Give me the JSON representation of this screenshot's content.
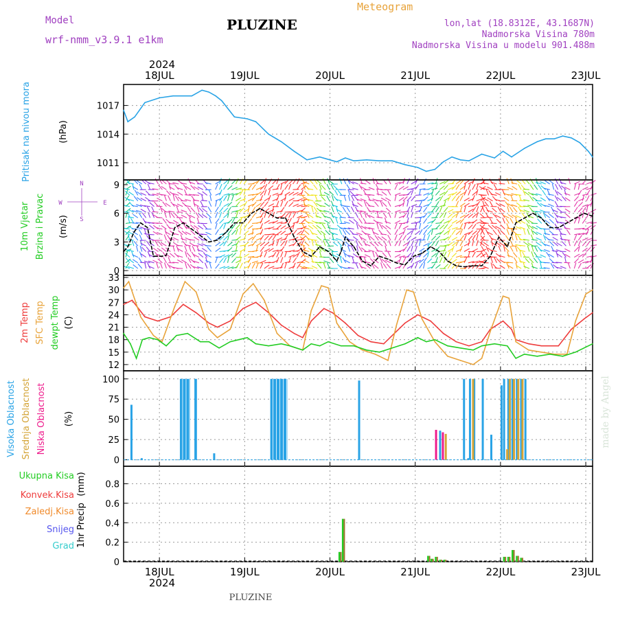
{
  "header": {
    "model_label": "Model",
    "model_name": "wrf-nmm_v3.9.1 e1km",
    "station": "PLUZINE",
    "meteogram_label": "Meteogram",
    "coords": "lon,lat (18.8312E, 43.1687N)",
    "altitude": "Nadmorska Visina 780m",
    "model_altitude": "Nadmorska Visina u modelu 901.488m",
    "watermark": "made by Angel",
    "footer_station": "PLUZINE"
  },
  "colors": {
    "pressure": "#29a3e6",
    "temp2m": "#ee3b3b",
    "sfc_temp": "#e8a33a",
    "dewpt": "#22cc22",
    "high_cloud": "#29a3e6",
    "mid_cloud": "#d4a437",
    "low_cloud": "#ee1c8c",
    "total_precip": "#22cc22",
    "conv_precip": "#ee3b3b",
    "frozen_precip": "#f08a2a",
    "snow": "#5555ee",
    "graupel": "#33cccc",
    "label_purple": "#a040c0"
  },
  "time_axis": {
    "year_label": "2024",
    "days": [
      "18JUL",
      "19JUL",
      "20JUL",
      "21JUL",
      "22JUL",
      "23JUL"
    ]
  },
  "chart_data": [
    {
      "type": "line",
      "ylabel_a": "Pritisak na nivou mora",
      "ylabel_b": "(hPa)",
      "ylim": [
        1009.2,
        1019.2
      ],
      "yticks": [
        1011,
        1014,
        1017
      ],
      "grid": true,
      "series": [
        {
          "name": "Pritisak na nivou mora",
          "x": [
            0,
            0.05,
            0.13,
            0.25,
            0.42,
            0.58,
            0.8,
            0.92,
            1.0,
            1.08,
            1.15,
            1.3,
            1.45,
            1.55,
            1.7,
            1.85,
            2.0,
            2.15,
            2.3,
            2.42,
            2.5,
            2.6,
            2.7,
            2.85,
            3.0,
            3.15,
            3.3,
            3.45,
            3.55,
            3.65,
            3.75,
            3.85,
            3.95,
            4.05,
            4.2,
            4.35,
            4.45,
            4.55,
            4.7,
            4.85,
            4.95,
            5.05,
            5.15,
            5.25,
            5.35,
            5.45,
            5.5
          ],
          "y": [
            1016.5,
            1015.3,
            1015.8,
            1017.3,
            1017.8,
            1018.0,
            1018.0,
            1018.6,
            1018.4,
            1018.0,
            1017.5,
            1015.8,
            1015.6,
            1015.3,
            1014.0,
            1013.2,
            1012.2,
            1011.3,
            1011.6,
            1011.3,
            1011.1,
            1011.5,
            1011.2,
            1011.3,
            1011.2,
            1011.2,
            1010.8,
            1010.5,
            1010.1,
            1010.3,
            1011.1,
            1011.6,
            1011.3,
            1011.2,
            1011.9,
            1011.5,
            1012.2,
            1011.6,
            1012.5,
            1013.2,
            1013.5,
            1013.5,
            1013.8,
            1013.6,
            1013.1,
            1012.2,
            1011.6
          ]
        }
      ]
    },
    {
      "type": "line",
      "ylabel_a": "10m Vjetar",
      "ylabel_b": "Brzina i Pravac",
      "ylabel_c": "(m/s)",
      "compass": {
        "n": "N",
        "s": "S",
        "e": "E",
        "w": "W"
      },
      "ylim": [
        -0.5,
        9.5
      ],
      "yticks": [
        0,
        3,
        6,
        9
      ],
      "grid": true,
      "series": [
        {
          "name": "Brzina i Pravac",
          "x": [
            0,
            0.05,
            0.12,
            0.2,
            0.28,
            0.35,
            0.45,
            0.5,
            0.6,
            0.7,
            0.85,
            1.0,
            1.1,
            1.2,
            1.3,
            1.4,
            1.5,
            1.6,
            1.7,
            1.8,
            1.9,
            2.0,
            2.1,
            2.2,
            2.3,
            2.4,
            2.5,
            2.55,
            2.6,
            2.7,
            2.8,
            2.9,
            3.0,
            3.1,
            3.2,
            3.3,
            3.4,
            3.5,
            3.6,
            3.7,
            3.8,
            3.9,
            4.0,
            4.1,
            4.2,
            4.3,
            4.4,
            4.5,
            4.6,
            4.7,
            4.8,
            4.9,
            5.0,
            5.1,
            5.2,
            5.3,
            5.4,
            5.5
          ],
          "y": [
            2.0,
            2.5,
            4.0,
            5.0,
            4.5,
            1.5,
            1.5,
            1.6,
            4.5,
            5.0,
            4.0,
            3.0,
            3.2,
            4.0,
            5.0,
            5.0,
            6.0,
            6.5,
            6.0,
            5.5,
            5.5,
            3.5,
            2.0,
            1.5,
            2.5,
            2.0,
            1.0,
            2.0,
            3.5,
            2.5,
            1.0,
            0.5,
            1.5,
            1.2,
            0.8,
            0.6,
            1.5,
            1.8,
            2.5,
            2.0,
            1.0,
            0.5,
            0.4,
            0.5,
            0.5,
            1.5,
            3.5,
            2.5,
            5.0,
            5.5,
            6.0,
            5.5,
            4.5,
            4.5,
            5.0,
            5.5,
            6.0,
            5.7
          ]
        }
      ]
    },
    {
      "type": "line",
      "ylabel_a": "2m Temp",
      "ylabel_b": "SFC Temp",
      "ylabel_c": "dewpt Temp",
      "ylabel_d": "(C)",
      "ylim": [
        10.5,
        33.5
      ],
      "yticks": [
        12,
        15,
        18,
        21,
        24,
        27,
        30,
        33
      ],
      "grid": true,
      "series": [
        {
          "name": "2m Temp",
          "x": [
            0,
            0.1,
            0.25,
            0.4,
            0.55,
            0.7,
            0.85,
            1.0,
            1.1,
            1.25,
            1.4,
            1.55,
            1.7,
            1.85,
            2.0,
            2.1,
            2.2,
            2.35,
            2.45,
            2.6,
            2.75,
            2.9,
            3.05,
            3.2,
            3.3,
            3.45,
            3.6,
            3.75,
            3.9,
            4.05,
            4.2,
            4.3,
            4.45,
            4.55,
            4.6,
            4.75,
            4.9,
            5.1,
            5.25,
            5.4,
            5.5
          ],
          "y": [
            26.5,
            27.5,
            23.5,
            22.5,
            23.5,
            26.5,
            24.5,
            22.0,
            21.0,
            22.5,
            25.5,
            27.0,
            24.5,
            21.5,
            19.5,
            18.5,
            22.5,
            25.5,
            24.5,
            22.0,
            19.0,
            17.5,
            17.0,
            20.0,
            22.0,
            24.0,
            22.5,
            19.5,
            17.5,
            16.5,
            17.5,
            20.5,
            22.5,
            20.5,
            18.0,
            17.0,
            16.5,
            16.5,
            20.5,
            23.0,
            24.5
          ]
        },
        {
          "name": "SFC Temp",
          "x": [
            0,
            0.06,
            0.2,
            0.35,
            0.45,
            0.6,
            0.72,
            0.85,
            1.0,
            1.1,
            1.25,
            1.4,
            1.52,
            1.65,
            1.8,
            1.95,
            2.1,
            2.2,
            2.32,
            2.4,
            2.5,
            2.65,
            2.8,
            2.95,
            3.1,
            3.2,
            3.32,
            3.4,
            3.5,
            3.65,
            3.8,
            3.95,
            4.1,
            4.2,
            4.3,
            4.45,
            4.52,
            4.6,
            4.75,
            4.9,
            5.05,
            5.2,
            5.3,
            5.42,
            5.5
          ],
          "y": [
            30.5,
            32.0,
            23.5,
            19.0,
            17.5,
            26.0,
            32.0,
            29.5,
            20.5,
            18.5,
            20.5,
            29.0,
            31.5,
            27.5,
            19.5,
            16.5,
            15.5,
            25.0,
            31.0,
            30.5,
            22.0,
            17.5,
            15.5,
            14.5,
            13.0,
            21.5,
            30.0,
            29.5,
            23.0,
            17.5,
            14.0,
            13.0,
            12.0,
            13.5,
            20.0,
            28.5,
            28.0,
            17.5,
            15.5,
            15.0,
            14.5,
            14.5,
            22.5,
            29.0,
            30.0
          ]
        },
        {
          "name": "dewpt Temp",
          "x": [
            0,
            0.08,
            0.15,
            0.22,
            0.3,
            0.4,
            0.5,
            0.62,
            0.75,
            0.9,
            1.0,
            1.12,
            1.25,
            1.35,
            1.45,
            1.55,
            1.7,
            1.85,
            1.95,
            2.1,
            2.2,
            2.3,
            2.4,
            2.55,
            2.7,
            2.85,
            3.0,
            3.15,
            3.3,
            3.45,
            3.55,
            3.65,
            3.8,
            3.95,
            4.1,
            4.2,
            4.35,
            4.5,
            4.6,
            4.7,
            4.85,
            5.0,
            5.15,
            5.3,
            5.5
          ],
          "y": [
            19.5,
            17.0,
            13.5,
            18.0,
            18.5,
            18.0,
            16.5,
            19.0,
            19.5,
            17.5,
            17.5,
            16.0,
            17.5,
            18.0,
            18.5,
            17.0,
            16.5,
            17.0,
            16.5,
            15.5,
            17.0,
            16.5,
            17.5,
            16.5,
            16.5,
            15.5,
            15.0,
            16.0,
            17.0,
            18.5,
            17.5,
            18.0,
            16.5,
            16.0,
            15.5,
            16.5,
            17.0,
            16.5,
            13.5,
            14.5,
            14.0,
            14.5,
            14.0,
            15.0,
            17.0
          ]
        }
      ]
    },
    {
      "type": "bar",
      "ylabel_a": "Visoka Oblacnost",
      "ylabel_b": "Srednja Oblacnost",
      "ylabel_c": "Niska Oblacnost",
      "ylabel_d": "(%)",
      "ylim": [
        -8,
        110
      ],
      "yticks": [
        0,
        25,
        50,
        75,
        100
      ],
      "grid": true,
      "series": [
        {
          "name": "Visoka Oblacnost",
          "x": [
            0.08,
            0.2,
            1.05,
            2.75,
            3.7,
            3.98,
            4.03,
            4.05,
            4.1,
            4.2,
            4.3,
            4.42,
            4.45,
            4.5,
            4.52,
            4.55,
            4.6,
            4.65,
            4.7
          ],
          "y": [
            68,
            2,
            8,
            98,
            36,
            100,
            2,
            100,
            100,
            100,
            31,
            92,
            100,
            100,
            100,
            100,
            100,
            100,
            100
          ]
        },
        {
          "name": "Srednja Oblacnost",
          "x": [
            3.75,
            4.07,
            4.47,
            4.5,
            4.55,
            4.6,
            4.65
          ],
          "y": [
            32,
            100,
            13,
            100,
            100,
            100,
            100
          ]
        },
        {
          "name": "Niska Oblacnost",
          "x": [
            3.62,
            3.7
          ],
          "y": [
            37,
            34
          ]
        }
      ],
      "bands": [
        {
          "from": 0.66,
          "to": 0.78,
          "value": 100
        },
        {
          "from": 0.83,
          "to": 0.86,
          "value": 100
        },
        {
          "from": 1.72,
          "to": 1.92,
          "value": 100
        }
      ]
    },
    {
      "type": "bar",
      "ylabel_a": "1hr Precip",
      "ylabel_b": "(mm)",
      "legend": [
        "Ukupna Kisa",
        "Konvek.Kisa",
        "Zaledj.Kisa",
        "Snijeg",
        "Grad"
      ],
      "ylim": [
        0,
        0.98
      ],
      "yticks": [
        0,
        0.2,
        0.4,
        0.6,
        0.8
      ],
      "grid": true,
      "series": [
        {
          "name": "Ukupna Kisa",
          "x": [
            2.52,
            2.56,
            3.56,
            3.6,
            3.65,
            3.7,
            3.75,
            4.45,
            4.5,
            4.55,
            4.6,
            4.65
          ],
          "y": [
            0.1,
            0.44,
            0.06,
            0.03,
            0.05,
            0.02,
            0.02,
            0.05,
            0.05,
            0.12,
            0.06,
            0.04
          ]
        }
      ]
    }
  ]
}
